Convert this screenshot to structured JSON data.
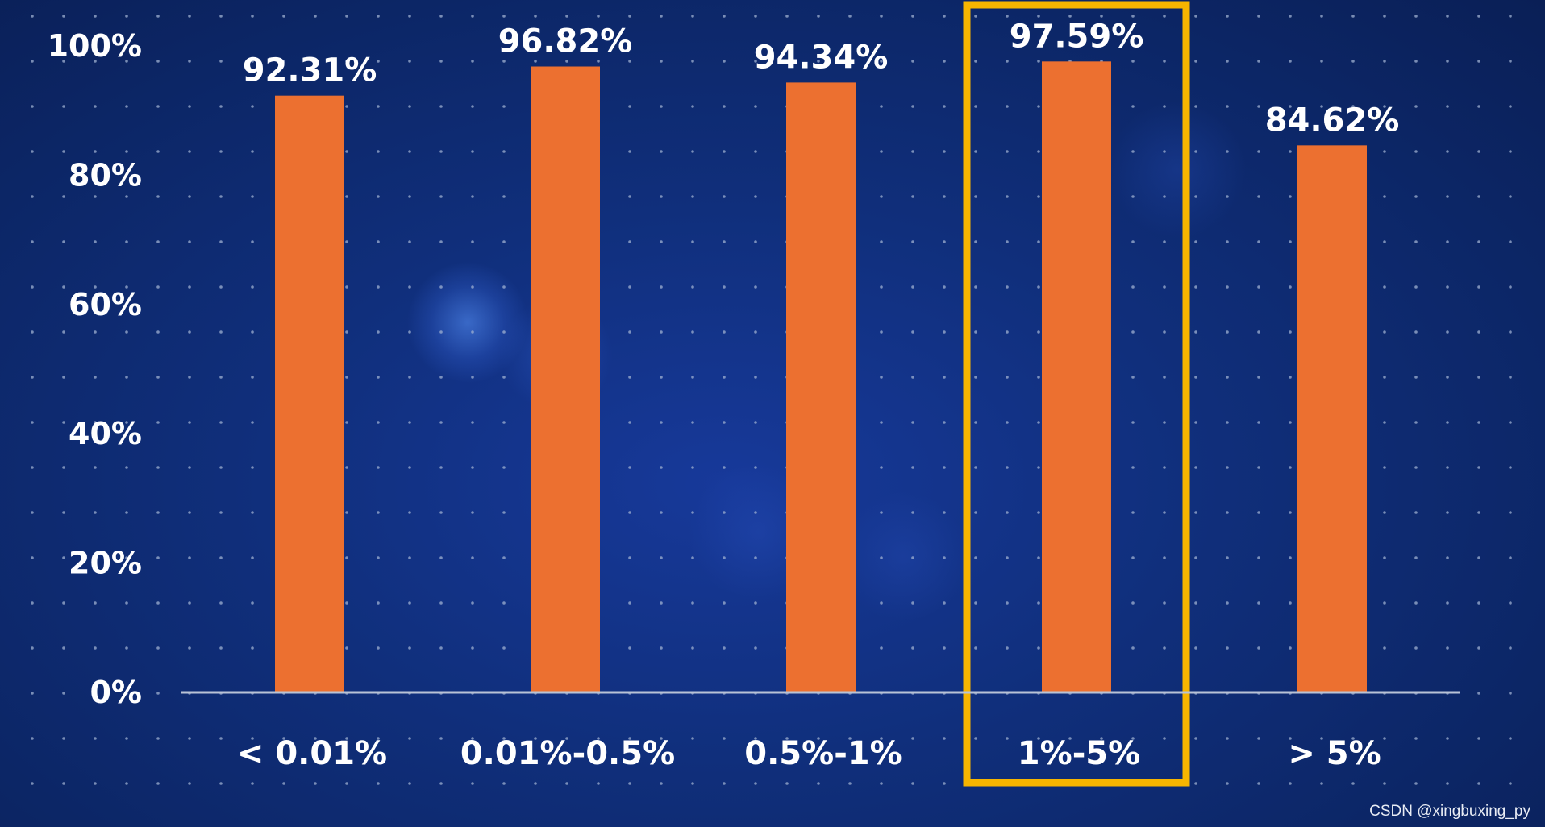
{
  "chart_data": {
    "type": "bar",
    "categories": [
      "< 0.01%",
      "0.01%-0.5%",
      "0.5%-1%",
      "1%-5%",
      "> 5%"
    ],
    "values": [
      92.31,
      96.82,
      94.34,
      97.59,
      84.62
    ],
    "value_labels": [
      "92.31%",
      "96.82%",
      "94.34%",
      "97.59%",
      "84.62%"
    ],
    "y_ticks": [
      0,
      20,
      40,
      60,
      80,
      100
    ],
    "y_tick_labels": [
      "0%",
      "20%",
      "40%",
      "60%",
      "80%",
      "100%"
    ],
    "ylim": [
      0,
      100
    ],
    "highlighted_category": "1%-5%",
    "grid": "dotted",
    "legend": "none",
    "colors": {
      "bar": "#ec7030",
      "highlight_box": "#f7b500",
      "text": "#ffffff",
      "axis": "#b9c3d6",
      "grid_dot": "#9fb0d0"
    }
  },
  "watermark": "CSDN @xingbuxing_py"
}
